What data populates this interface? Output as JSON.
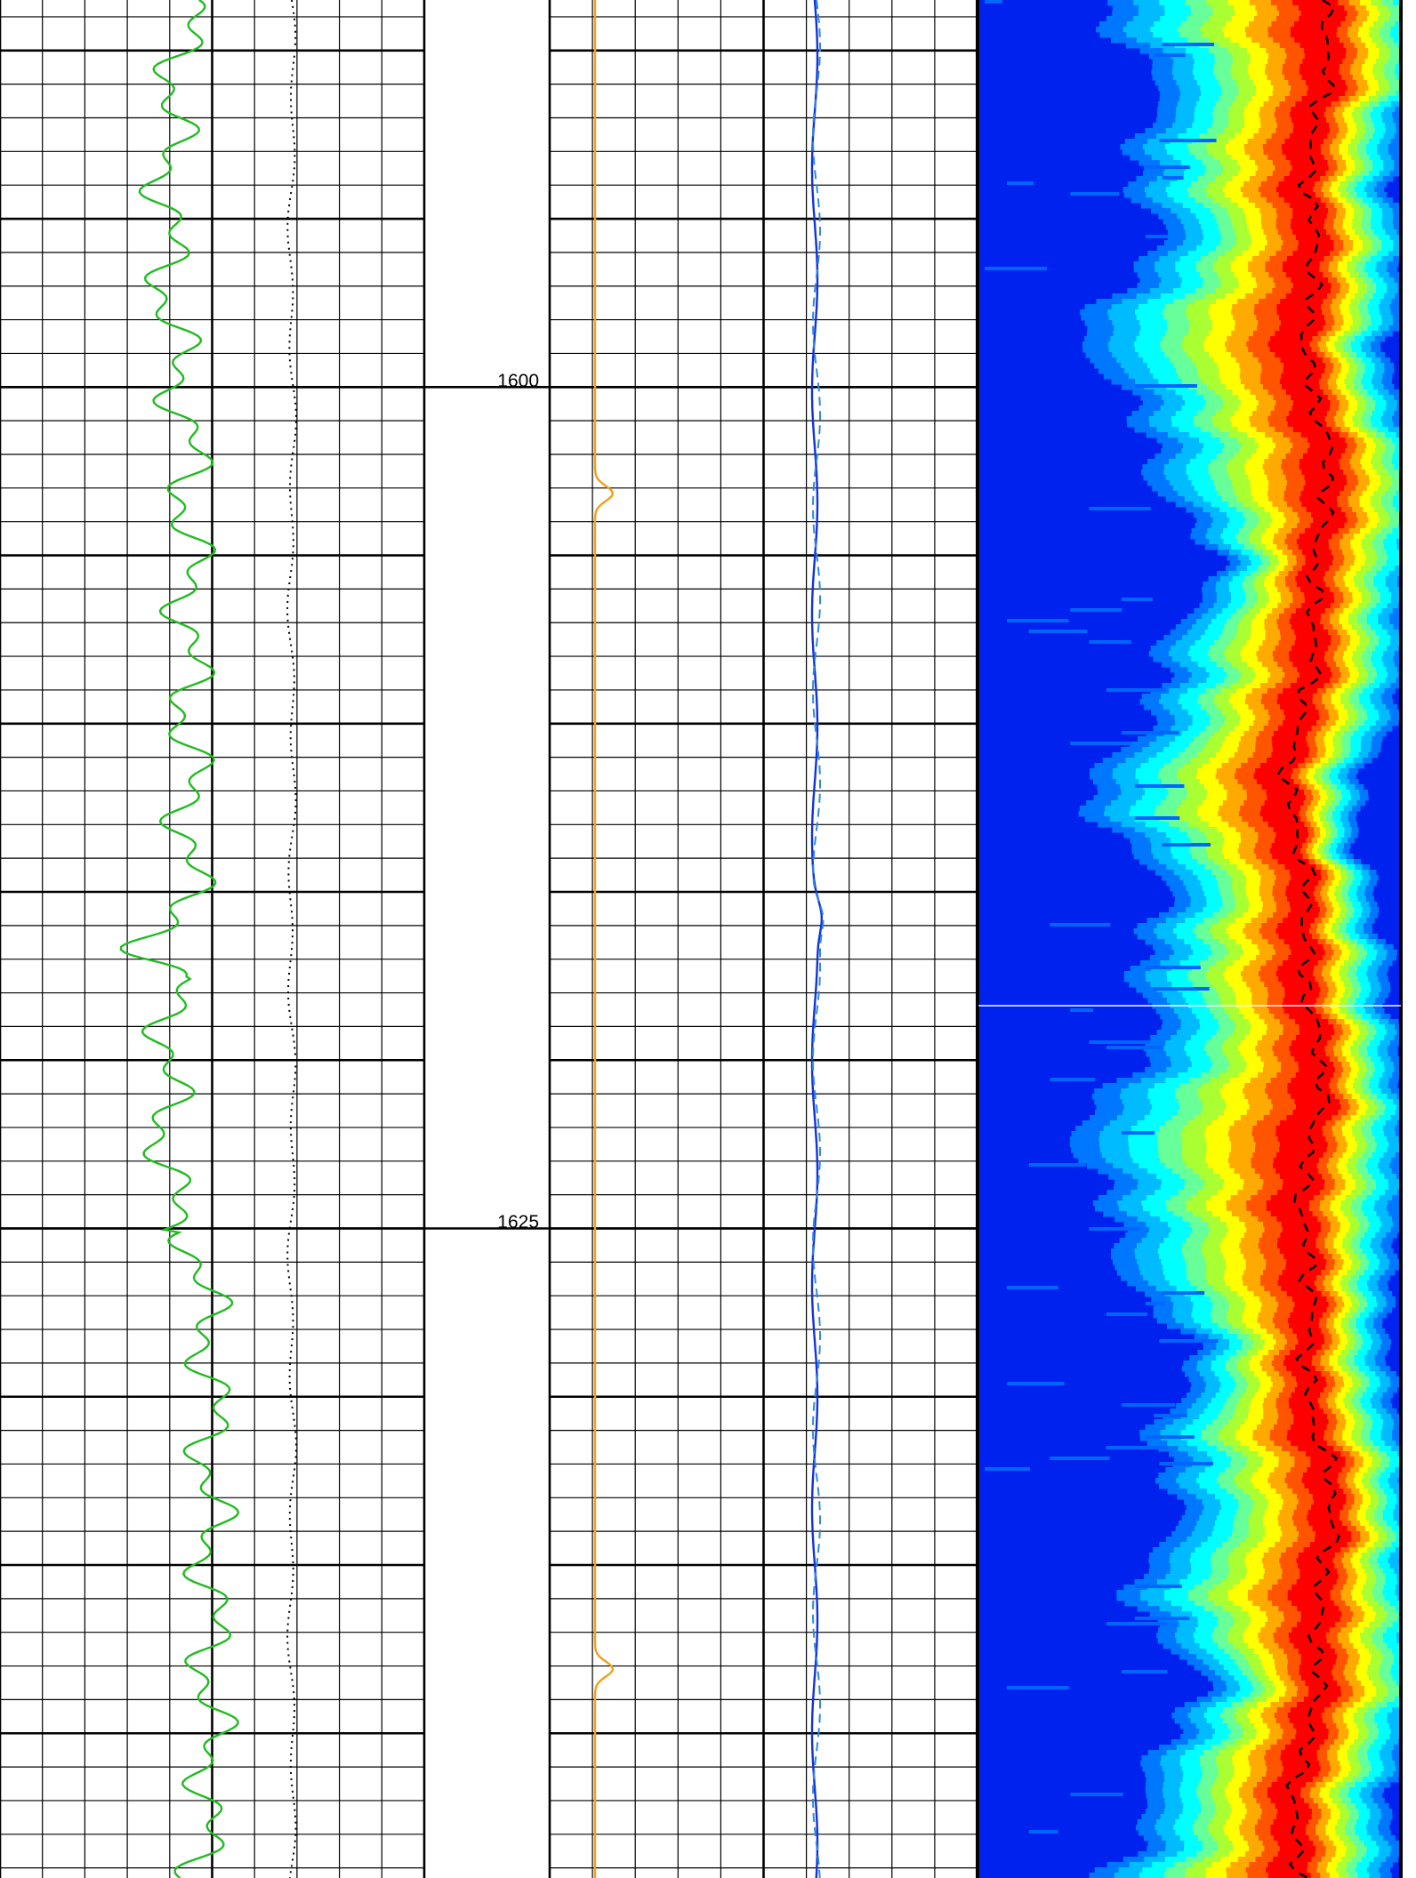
{
  "chart_data": {
    "type": "well-log",
    "ylim": [
      1588.5,
      1644.3
    ],
    "yticks": [
      1600,
      1625
    ],
    "grid": true
  }
}
